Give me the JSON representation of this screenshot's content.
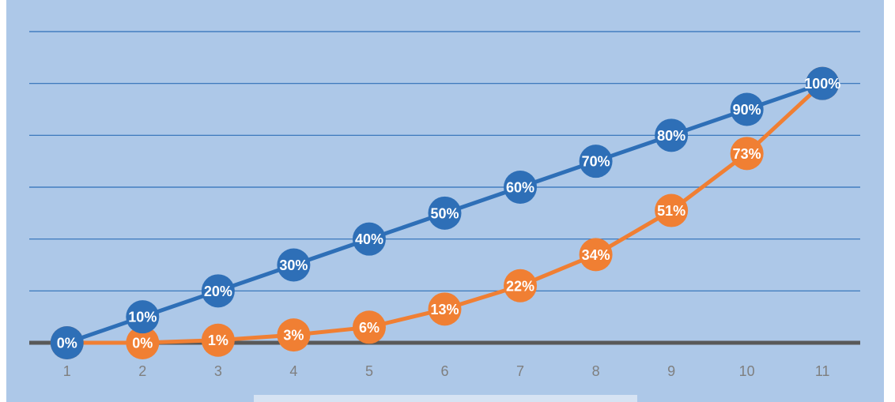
{
  "chart_data": {
    "type": "line",
    "title": "",
    "categories": [
      "1",
      "2",
      "3",
      "4",
      "5",
      "6",
      "7",
      "8",
      "9",
      "10",
      "11"
    ],
    "ylim": [
      0,
      1.2
    ],
    "grid": true,
    "series": [
      {
        "color": "#2e6fb7",
        "values": [
          0,
          0.1,
          0.2,
          0.3,
          0.4,
          0.5,
          0.6,
          0.7,
          0.8,
          0.9,
          1.0
        ],
        "labels": [
          "0%",
          "10%",
          "20%",
          "30%",
          "40%",
          "50%",
          "60%",
          "70%",
          "80%",
          "90%",
          "100%"
        ]
      },
      {
        "color": "#f07f33",
        "values": [
          0,
          0,
          0.01,
          0.03,
          0.06,
          0.13,
          0.22,
          0.34,
          0.51,
          0.73,
          1.0
        ],
        "labels": [
          "0%",
          "0%",
          "1%",
          "3%",
          "6%",
          "13%",
          "22%",
          "34%",
          "51%",
          "73%",
          "100%"
        ]
      }
    ]
  },
  "colors": {
    "background": "#adc8e8",
    "gridline": "#2e6fb7",
    "axis": "#595959",
    "tick_text": "#7f7f7f"
  }
}
